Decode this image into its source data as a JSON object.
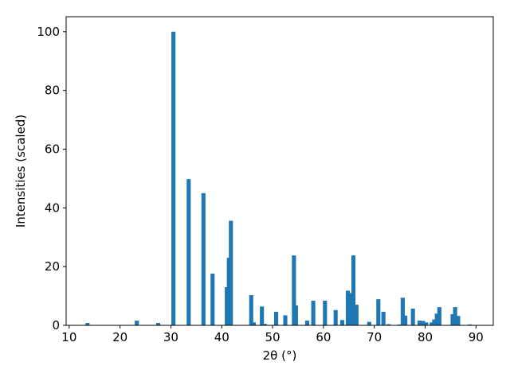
{
  "chart_data": {
    "type": "bar",
    "x_label": "2θ (°)",
    "y_label": "Intensities (scaled)",
    "x": [
      13.6,
      23.3,
      27.5,
      30.5,
      33.5,
      36.4,
      38.2,
      41.0,
      41.4,
      41.8,
      45.8,
      46.3,
      47.9,
      48.5,
      50.7,
      52.5,
      54.2,
      54.6,
      56.8,
      58.0,
      60.3,
      62.4,
      63.7,
      64.8,
      65.3,
      65.9,
      66.5,
      69.0,
      70.8,
      71.8,
      72.8,
      75.0,
      75.6,
      76.1,
      77.6,
      78.9,
      79.6,
      80.2,
      81.3,
      81.8,
      82.3,
      82.8,
      85.4,
      85.9,
      86.5,
      88.8
    ],
    "values": [
      0.8,
      1.6,
      0.8,
      100,
      49.8,
      45,
      17.6,
      13,
      23,
      35.6,
      10.3,
      1,
      6.4,
      0.5,
      4.6,
      3.4,
      23.8,
      6.8,
      1.6,
      8.4,
      8.4,
      5.2,
      1.8,
      11.8,
      11,
      23.8,
      7,
      1.2,
      8.9,
      4.6,
      0.4,
      0.3,
      9.4,
      3.3,
      5.7,
      1.6,
      1.5,
      1,
      1,
      2,
      4,
      6.2,
      3.8,
      6.2,
      3.2,
      0.3
    ],
    "color": "#1f77b4",
    "xlim": [
      9.4,
      93.4
    ],
    "ylim": [
      0,
      105.1
    ],
    "xticks": [
      10,
      20,
      30,
      40,
      50,
      60,
      70,
      80,
      90
    ],
    "yticks": [
      0,
      20,
      40,
      60,
      80,
      100
    ],
    "grid": false
  }
}
